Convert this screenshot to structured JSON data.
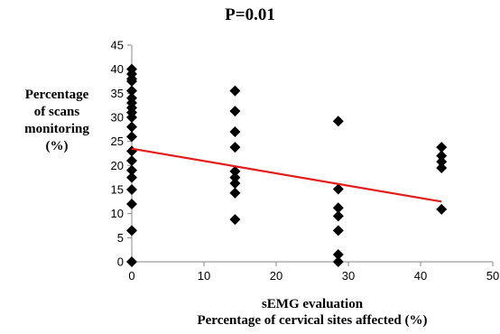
{
  "chart_data": {
    "type": "scatter",
    "title": "P=0.01",
    "ylabel_lines": [
      "Percentage",
      "of scans",
      "monitoring",
      "(%)"
    ],
    "xlabel_lines": [
      "sEMG evaluation",
      "Percentage of cervical sites affected (%)"
    ],
    "xlim": [
      0,
      50
    ],
    "ylim": [
      0,
      45
    ],
    "xticks": [
      0,
      10,
      20,
      30,
      40,
      50
    ],
    "yticks": [
      0,
      5,
      10,
      15,
      20,
      25,
      30,
      35,
      40,
      45
    ],
    "grid": false,
    "marker": "diamond",
    "marker_color": "#000000",
    "points": [
      {
        "x": 0,
        "y": 40
      },
      {
        "x": 0,
        "y": 39
      },
      {
        "x": 0,
        "y": 38
      },
      {
        "x": 0,
        "y": 37.5
      },
      {
        "x": 0,
        "y": 35.5
      },
      {
        "x": 0,
        "y": 34
      },
      {
        "x": 0,
        "y": 33
      },
      {
        "x": 0,
        "y": 32
      },
      {
        "x": 0,
        "y": 31
      },
      {
        "x": 0,
        "y": 30
      },
      {
        "x": 0,
        "y": 28
      },
      {
        "x": 0,
        "y": 26
      },
      {
        "x": 0,
        "y": 23
      },
      {
        "x": 0,
        "y": 21
      },
      {
        "x": 0,
        "y": 19
      },
      {
        "x": 0,
        "y": 17.5
      },
      {
        "x": 0,
        "y": 15
      },
      {
        "x": 0,
        "y": 12
      },
      {
        "x": 0,
        "y": 6.5
      },
      {
        "x": 0,
        "y": 0
      },
      {
        "x": 14.3,
        "y": 35.5
      },
      {
        "x": 14.3,
        "y": 31.3
      },
      {
        "x": 14.3,
        "y": 27
      },
      {
        "x": 14.3,
        "y": 23.8
      },
      {
        "x": 14.3,
        "y": 18.8
      },
      {
        "x": 14.3,
        "y": 17.5
      },
      {
        "x": 14.3,
        "y": 16.3
      },
      {
        "x": 14.3,
        "y": 14.3
      },
      {
        "x": 14.3,
        "y": 8.8
      },
      {
        "x": 28.6,
        "y": 29.2
      },
      {
        "x": 28.6,
        "y": 15.1
      },
      {
        "x": 28.6,
        "y": 11.2
      },
      {
        "x": 28.6,
        "y": 9.5
      },
      {
        "x": 28.6,
        "y": 6.5
      },
      {
        "x": 28.6,
        "y": 1.5
      },
      {
        "x": 28.6,
        "y": 0
      },
      {
        "x": 42.9,
        "y": 23.8
      },
      {
        "x": 42.9,
        "y": 22
      },
      {
        "x": 42.9,
        "y": 20.8
      },
      {
        "x": 42.9,
        "y": 19.5
      },
      {
        "x": 42.9,
        "y": 10.9
      }
    ],
    "trendline": {
      "x1": 0,
      "y1": 23.5,
      "x2": 42.9,
      "y2": 12.5,
      "color": "#e31b1b"
    }
  }
}
